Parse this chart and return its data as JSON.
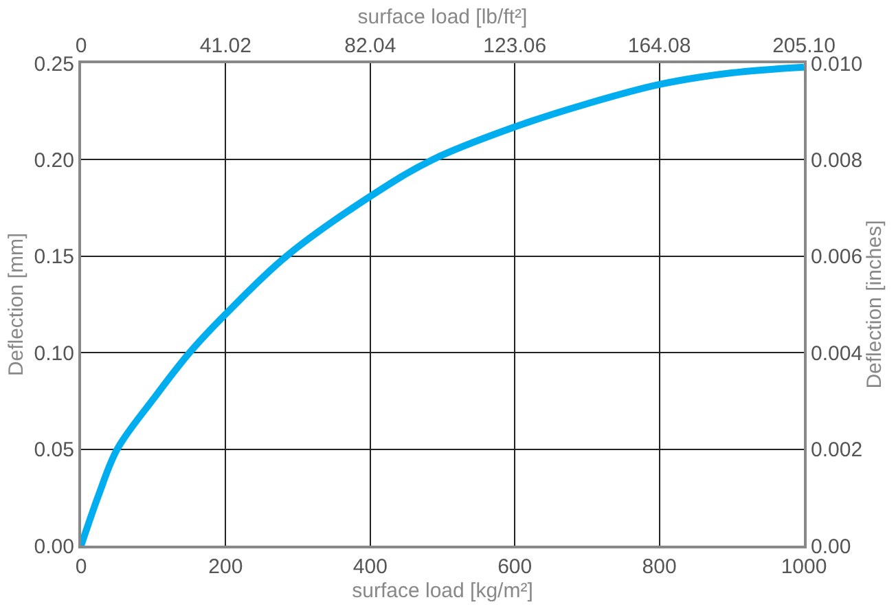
{
  "chart_data": {
    "type": "line",
    "xlabel": "surface load [kg/m²]",
    "x2label": "surface load [lb/ft²]",
    "ylabel": "Deflection [mm]",
    "y2label": "Deflection [inches]",
    "x": [
      0,
      25,
      50,
      100,
      150,
      200,
      284,
      400,
      486,
      600,
      700,
      800,
      900,
      1000
    ],
    "series": [
      {
        "color": "#00aeef",
        "values": [
          0,
          0.027,
          0.05,
          0.076,
          0.1,
          0.12,
          0.15,
          0.181,
          0.2,
          0.217,
          0.229,
          0.239,
          0.245,
          0.248
        ]
      }
    ],
    "xlim": [
      0,
      1000
    ],
    "xticks": [
      0,
      200,
      400,
      600,
      800,
      1000
    ],
    "x2lim": [
      0,
      205.1
    ],
    "x2ticks": [
      0,
      41.02,
      82.04,
      123.06,
      164.08,
      {
        "value": 205.1,
        "label": "205.10"
      }
    ],
    "ylim": [
      0,
      0.25
    ],
    "yticks": [
      {
        "value": 0,
        "label": "0.00"
      },
      {
        "value": 0.05,
        "label": "0.05"
      },
      {
        "value": 0.1,
        "label": "0.10"
      },
      {
        "value": 0.15,
        "label": "0.15"
      },
      {
        "value": 0.2,
        "label": "0.20"
      },
      {
        "value": 0.25,
        "label": "0.25"
      }
    ],
    "y2lim": [
      0,
      0.01
    ],
    "y2ticks": [
      {
        "value": 0,
        "label": "0.00"
      },
      0.002,
      0.004,
      0.006,
      0.008,
      {
        "value": 0.01,
        "label": "0.010"
      }
    ],
    "grid": true,
    "legend": false,
    "marker": "none",
    "line_style": "solid"
  }
}
